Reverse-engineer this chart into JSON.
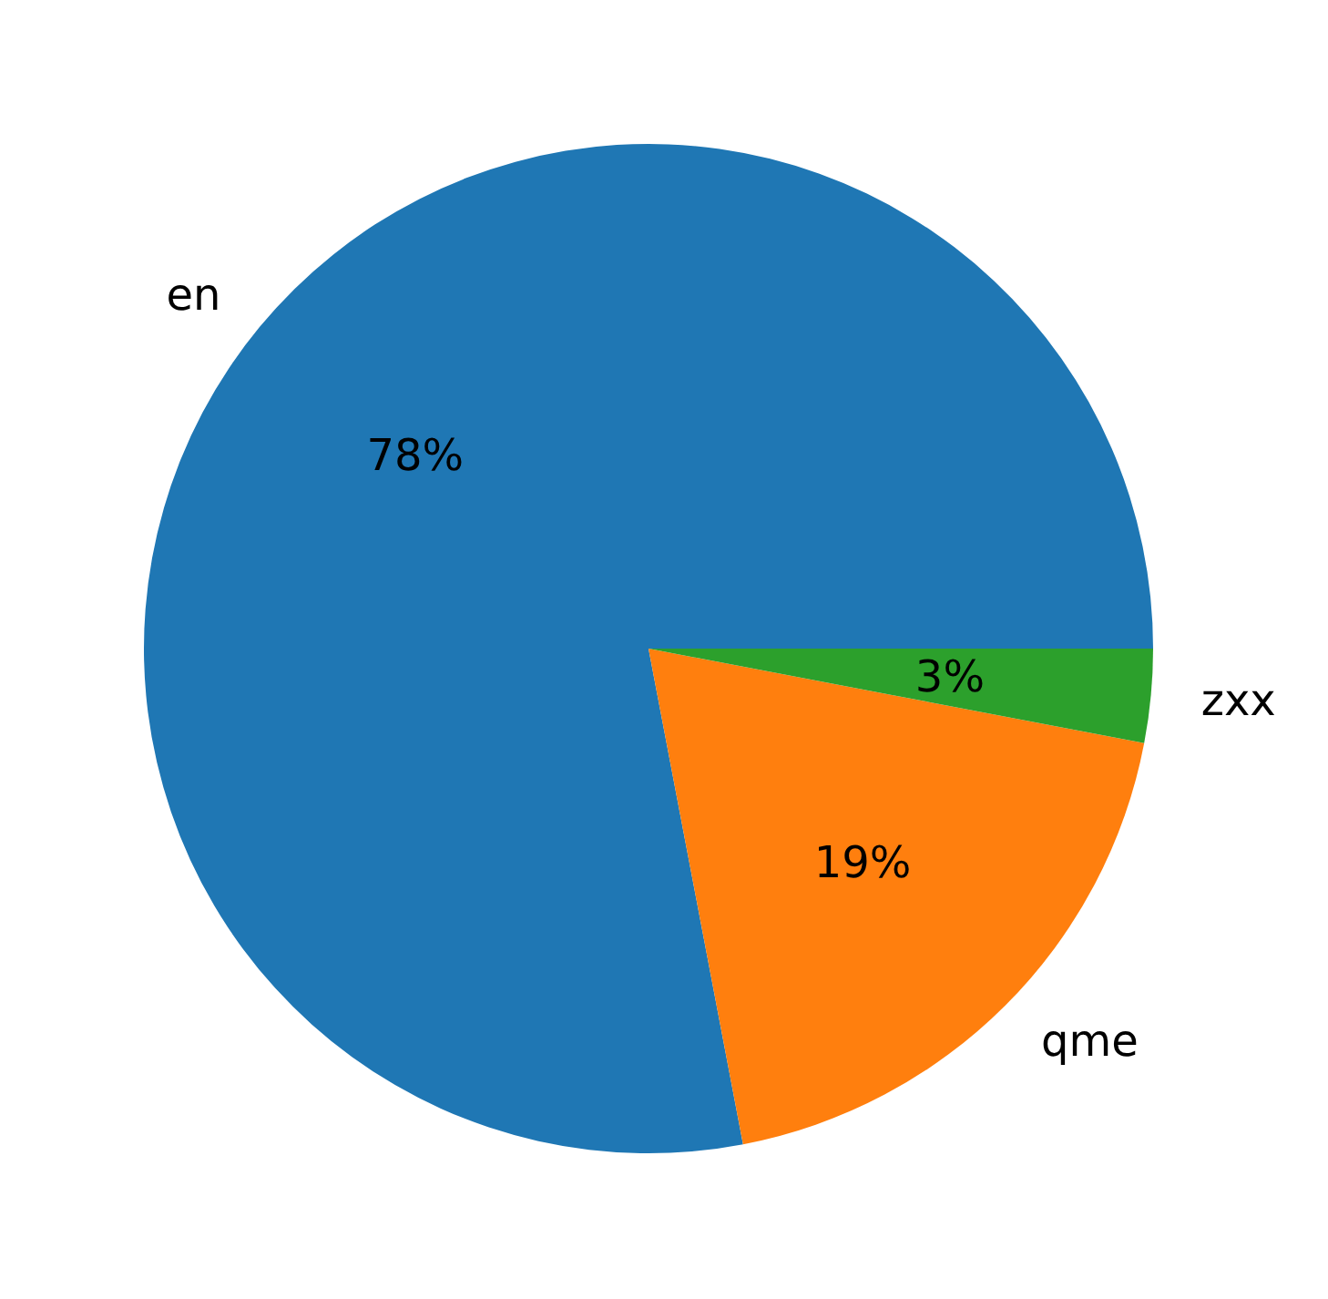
{
  "chart_data": {
    "type": "pie",
    "categories": [
      "en",
      "qme",
      "zxx"
    ],
    "values": [
      78,
      19,
      3
    ],
    "colors": [
      "#1f77b4",
      "#ff7f0e",
      "#2ca02c"
    ],
    "value_labels": [
      "78%",
      "19%",
      "3%"
    ]
  }
}
